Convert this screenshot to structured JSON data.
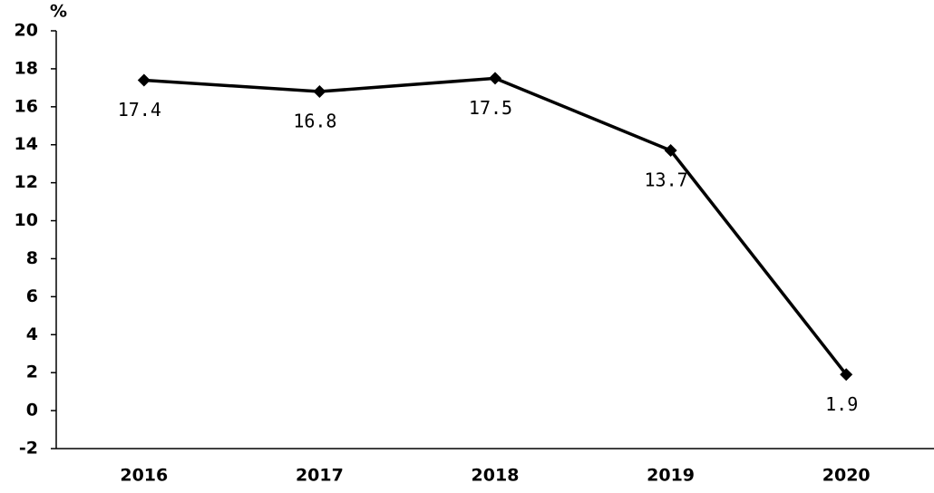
{
  "chart_data": {
    "type": "line",
    "y_label": "%",
    "categories": [
      "2016",
      "2017",
      "2018",
      "2019",
      "2020"
    ],
    "values": [
      17.4,
      16.8,
      17.5,
      13.7,
      1.9
    ],
    "color": "#000000",
    "ylim": [
      -2,
      20
    ],
    "yticks": [
      -2,
      0,
      2,
      4,
      6,
      8,
      10,
      12,
      14,
      16,
      18,
      20
    ]
  }
}
